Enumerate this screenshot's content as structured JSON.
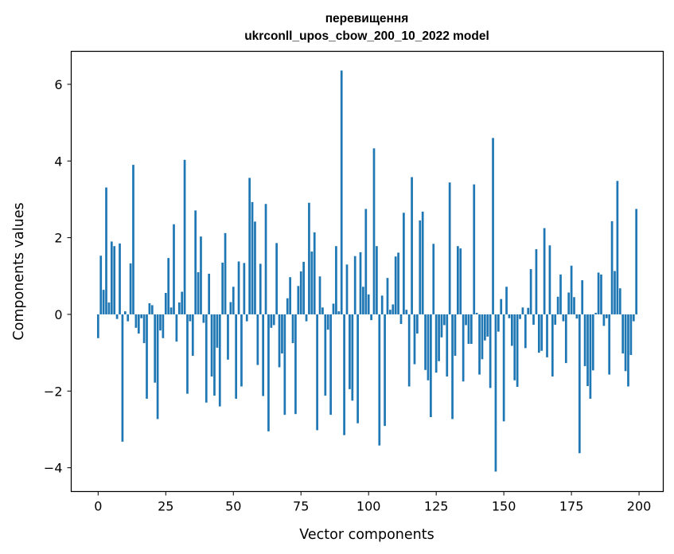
{
  "chart_data": {
    "type": "bar",
    "title": "перевищення",
    "subtitle": "ukrconll_upos_cbow_200_10_2022 model",
    "xlabel": "Vector components",
    "ylabel": "Components values",
    "xlim": [
      -9.95,
      208.95
    ],
    "ylim": [
      -4.62,
      6.86
    ],
    "xticks": [
      0,
      25,
      50,
      75,
      100,
      125,
      150,
      175,
      200
    ],
    "yticks": [
      -4,
      -2,
      0,
      2,
      4,
      6
    ],
    "ytick_labels": [
      "−4",
      "−2",
      "0",
      "2",
      "4",
      "6"
    ],
    "bar_color": "#1f77b4",
    "values": [
      -0.62,
      1.53,
      0.64,
      3.31,
      0.31,
      1.9,
      1.78,
      -0.12,
      1.85,
      -3.32,
      0.08,
      -0.18,
      1.33,
      3.9,
      -0.35,
      -0.5,
      -0.1,
      -0.75,
      -2.2,
      0.29,
      0.24,
      -1.78,
      -2.73,
      -0.42,
      -0.62,
      0.56,
      1.47,
      0.18,
      2.35,
      -0.71,
      0.31,
      0.59,
      4.03,
      -2.07,
      -0.18,
      -1.08,
      2.71,
      1.1,
      2.03,
      -0.22,
      -2.3,
      1.06,
      -1.62,
      -2.12,
      -0.87,
      -2.4,
      1.35,
      2.12,
      -1.18,
      0.32,
      0.72,
      -2.2,
      1.38,
      -1.88,
      1.34,
      -0.18,
      3.56,
      2.93,
      2.42,
      -1.32,
      1.32,
      -2.13,
      2.88,
      -3.05,
      -0.35,
      -0.28,
      1.86,
      -1.38,
      -1.02,
      -2.62,
      0.42,
      0.97,
      -0.75,
      -2.6,
      0.74,
      1.12,
      1.37,
      -0.18,
      2.91,
      1.64,
      2.14,
      -3.02,
      0.99,
      0.18,
      -2.12,
      -0.4,
      -2.62,
      0.28,
      1.78,
      0.08,
      6.36,
      -3.15,
      1.3,
      -1.95,
      -2.25,
      1.52,
      -2.84,
      1.62,
      0.72,
      2.75,
      0.52,
      -0.15,
      4.33,
      1.78,
      -3.42,
      0.49,
      -2.91,
      0.95,
      0.12,
      0.26,
      1.51,
      1.61,
      -0.25,
      2.65,
      0.12,
      -1.88,
      3.58,
      -1.3,
      -0.5,
      2.45,
      2.68,
      -1.45,
      -1.72,
      -2.68,
      1.84,
      -1.52,
      -1.22,
      -0.6,
      -0.28,
      -1.62,
      3.44,
      -2.73,
      -1.08,
      1.78,
      1.72,
      -1.75,
      -0.28,
      -0.77,
      -0.77,
      3.39,
      0.04,
      -1.57,
      -1.17,
      -0.68,
      -0.58,
      -1.92,
      4.6,
      -4.1,
      -0.45,
      0.4,
      -2.79,
      0.72,
      -0.1,
      -0.82,
      -1.72,
      -1.89,
      -0.12,
      0.18,
      -0.88,
      0.17,
      1.18,
      -0.27,
      1.7,
      -1.0,
      -0.95,
      2.25,
      -1.12,
      1.8,
      -1.62,
      -0.27,
      0.46,
      1.04,
      -0.18,
      -1.27,
      0.57,
      1.27,
      0.45,
      -0.11,
      -3.62,
      0.89,
      -1.35,
      -1.87,
      -2.2,
      -1.46,
      0.04,
      1.09,
      1.04,
      -0.3,
      -0.1,
      -1.57,
      2.43,
      1.13,
      3.48,
      0.68,
      -1.02,
      -1.48,
      -1.88,
      -1.06,
      -0.18,
      2.75
    ]
  }
}
